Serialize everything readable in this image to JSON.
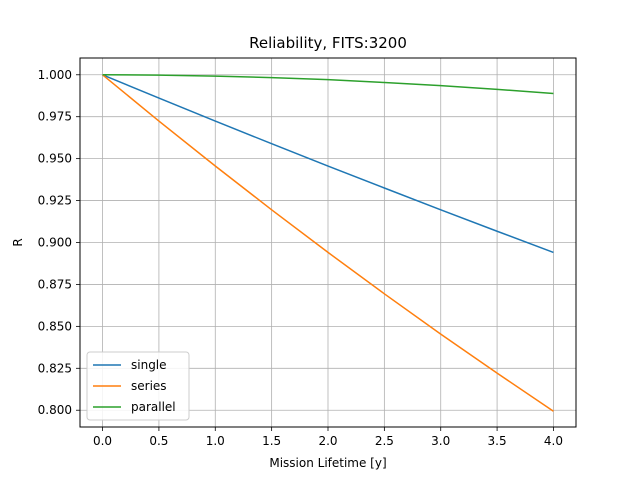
{
  "chart_data": {
    "type": "line",
    "title": "Reliability, FITS:3200",
    "xlabel": "Mission Lifetime [y]",
    "ylabel": "R",
    "xlim": [
      -0.2,
      4.2
    ],
    "ylim": [
      0.79,
      1.01
    ],
    "xticks": [
      0.0,
      0.5,
      1.0,
      1.5,
      2.0,
      2.5,
      3.0,
      3.5,
      4.0
    ],
    "xtick_labels": [
      "0.0",
      "0.5",
      "1.0",
      "1.5",
      "2.0",
      "2.5",
      "3.0",
      "3.5",
      "4.0"
    ],
    "yticks": [
      0.8,
      0.825,
      0.85,
      0.875,
      0.9,
      0.925,
      0.95,
      0.975,
      1.0
    ],
    "ytick_labels": [
      "0.800",
      "0.825",
      "0.850",
      "0.875",
      "0.900",
      "0.925",
      "0.950",
      "0.975",
      "1.000"
    ],
    "grid": true,
    "legend_position": "bottom-left",
    "x": [
      0.0,
      0.5,
      1.0,
      1.5,
      2.0,
      2.5,
      3.0,
      3.5,
      4.0
    ],
    "series": [
      {
        "name": "single",
        "color": "#1f77b4",
        "values": [
          1.0,
          0.9861,
          0.9724,
          0.9589,
          0.9456,
          0.9325,
          0.9195,
          0.9067,
          0.8941
        ]
      },
      {
        "name": "series",
        "color": "#ff7f0e",
        "values": [
          1.0,
          0.9724,
          0.9456,
          0.9195,
          0.8941,
          0.8694,
          0.8454,
          0.8221,
          0.7994
        ]
      },
      {
        "name": "parallel",
        "color": "#2ca02c",
        "values": [
          1.0,
          0.9998,
          0.9992,
          0.9983,
          0.9971,
          0.9954,
          0.9935,
          0.9913,
          0.9888
        ]
      }
    ]
  }
}
